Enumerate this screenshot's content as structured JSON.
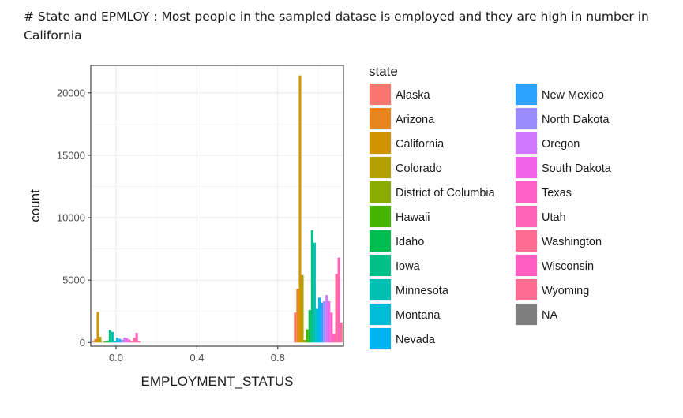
{
  "header": {
    "note": "# State and  EPMLOY : Most people in the sampled datase is employed and they are high in number in California"
  },
  "chart_data": {
    "type": "bar",
    "xlabel": "EMPLOYMENT_STATUS",
    "ylabel": "count",
    "xlim": [
      -0.125,
      1.125
    ],
    "ylim": [
      -300,
      22200
    ],
    "x_ticks": [
      0.0,
      0.4,
      0.8
    ],
    "x_tick_labels": [
      "0.0",
      "0.4",
      "0.8"
    ],
    "y_ticks": [
      0,
      5000,
      10000,
      15000,
      20000
    ],
    "y_tick_labels": [
      "0",
      "5000",
      "10000",
      "15000",
      "20000"
    ],
    "grid": true,
    "legend_title": "state",
    "legend_position": "right",
    "series": [
      {
        "name": "Alaska",
        "color": "#F8766D",
        "values": [
          70,
          2400
        ]
      },
      {
        "name": "Arizona",
        "color": "#E7851E",
        "values": [
          280,
          4300
        ]
      },
      {
        "name": "California",
        "color": "#D09400",
        "values": [
          2450,
          21400
        ]
      },
      {
        "name": "Colorado",
        "color": "#B2A100",
        "values": [
          450,
          5400
        ]
      },
      {
        "name": "District of Columbia",
        "color": "#89AC00",
        "values": [
          30,
          200
        ]
      },
      {
        "name": "Hawaii",
        "color": "#45B500",
        "values": [
          120,
          1050
        ]
      },
      {
        "name": "Idaho",
        "color": "#00BC51",
        "values": [
          160,
          2600
        ]
      },
      {
        "name": "Iowa",
        "color": "#00C087",
        "values": [
          1000,
          9000
        ]
      },
      {
        "name": "Minnesota",
        "color": "#00C0B2",
        "values": [
          850,
          8000
        ]
      },
      {
        "name": "Montana",
        "color": "#00BCD6",
        "values": [
          120,
          2700
        ]
      },
      {
        "name": "Nevada",
        "color": "#00B3F2",
        "values": [
          380,
          3600
        ]
      },
      {
        "name": "New Mexico",
        "color": "#29A3FF",
        "values": [
          300,
          3200
        ]
      },
      {
        "name": "North Dakota",
        "color": "#9C8DFF",
        "values": [
          220,
          3300
        ]
      },
      {
        "name": "Oregon",
        "color": "#D277FF",
        "values": [
          400,
          3800
        ]
      },
      {
        "name": "South Dakota",
        "color": "#F166E8",
        "values": [
          350,
          3300
        ]
      },
      {
        "name": "Texas",
        "color": "#FF61C7",
        "values": [
          240,
          2400
        ]
      },
      {
        "name": "Utah",
        "color": "#FF63B8",
        "values": [
          120,
          700
        ]
      },
      {
        "name": "Washington",
        "color": "#FF6C91",
        "values": [
          380,
          5500
        ]
      },
      {
        "name": "Wisconsin",
        "color": "#FF5FC0",
        "values": [
          780,
          6800
        ]
      },
      {
        "name": "Wyoming",
        "color": "#FF6C91",
        "values": [
          150,
          1600
        ]
      },
      {
        "name": "NA",
        "color": "#7F7F7F",
        "values": [
          0,
          0
        ]
      }
    ],
    "legend_columns": [
      [
        "Alaska",
        "Arizona",
        "California",
        "Colorado",
        "District of Columbia",
        "Hawaii",
        "Idaho",
        "Iowa",
        "Minnesota",
        "Montana",
        "Nevada"
      ],
      [
        "New Mexico",
        "North Dakota",
        "Oregon",
        "South Dakota",
        "Texas",
        "Utah",
        "Washington",
        "Wisconsin",
        "Wyoming",
        "NA"
      ]
    ]
  }
}
